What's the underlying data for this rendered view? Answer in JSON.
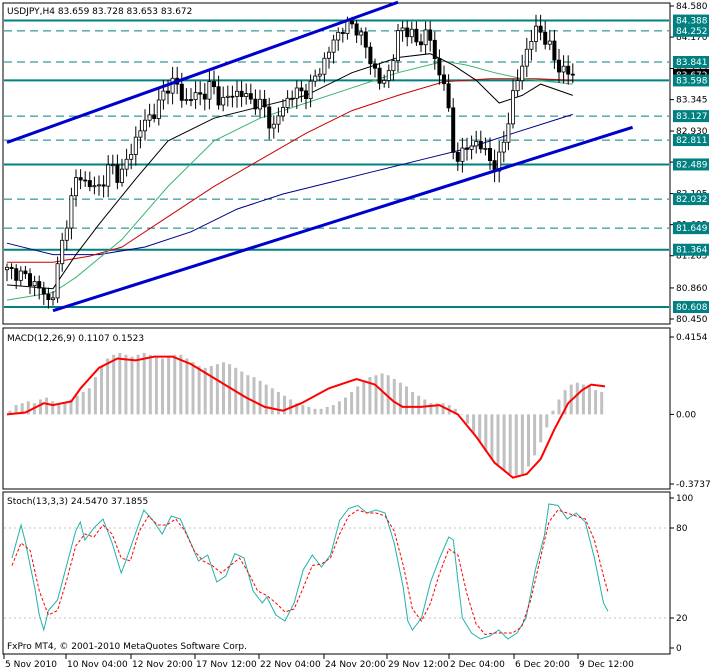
{
  "chart_data": [
    {
      "type": "candlestick",
      "panel": "price",
      "title": "USDJPY,H4  83.659 83.728 83.653 83.672",
      "y_ticks": [
        84.58,
        84.17,
        83.755,
        83.345,
        82.93,
        82.52,
        82.105,
        81.695,
        81.285,
        80.86,
        80.45
      ],
      "ylim": [
        80.45,
        84.58
      ],
      "price_labels": [
        {
          "value": 84.388,
          "color": "#008080"
        },
        {
          "value": 84.252,
          "color": "#008080"
        },
        {
          "value": 83.841,
          "color": "#008080"
        },
        {
          "value": 83.672,
          "color": "#000000"
        },
        {
          "value": 83.598,
          "color": "#008080"
        },
        {
          "value": 83.127,
          "color": "#008080"
        },
        {
          "value": 82.811,
          "color": "#008080"
        },
        {
          "value": 82.489,
          "color": "#008080"
        },
        {
          "value": 82.032,
          "color": "#008080"
        },
        {
          "value": 81.649,
          "color": "#008080"
        },
        {
          "value": 81.364,
          "color": "#008080"
        },
        {
          "value": 80.608,
          "color": "#008080"
        }
      ],
      "solid_levels": [
        84.388,
        83.598,
        82.489,
        81.364,
        80.608
      ],
      "dashed_levels": [
        84.252,
        83.841,
        83.127,
        82.811,
        82.032,
        81.649
      ],
      "close_path": [
        [
          0,
          81.1
        ],
        [
          3,
          81.05
        ],
        [
          6,
          80.95
        ],
        [
          9,
          80.75
        ],
        [
          10,
          80.62
        ],
        [
          12,
          81.3
        ],
        [
          14,
          81.9
        ],
        [
          16,
          82.4
        ],
        [
          18,
          82.2
        ],
        [
          21,
          82.2
        ],
        [
          23,
          82.5
        ],
        [
          25,
          82.3
        ],
        [
          27,
          82.6
        ],
        [
          29,
          82.9
        ],
        [
          31,
          83.1
        ],
        [
          33,
          83.2
        ],
        [
          35,
          83.5
        ],
        [
          37,
          83.6
        ],
        [
          39,
          83.3
        ],
        [
          41,
          83.4
        ],
        [
          43,
          83.4
        ],
        [
          45,
          83.55
        ],
        [
          47,
          83.3
        ],
        [
          49,
          83.4
        ],
        [
          51,
          83.45
        ],
        [
          53,
          83.35
        ],
        [
          55,
          83.3
        ],
        [
          57,
          83.2
        ],
        [
          58,
          82.9
        ],
        [
          60,
          83.2
        ],
        [
          62,
          83.4
        ],
        [
          64,
          83.45
        ],
        [
          66,
          83.45
        ],
        [
          68,
          83.7
        ],
        [
          70,
          83.9
        ],
        [
          72,
          84.2
        ],
        [
          74,
          84.3
        ],
        [
          76,
          84.35
        ],
        [
          78,
          84.1
        ],
        [
          80,
          83.8
        ],
        [
          82,
          83.5
        ],
        [
          84,
          83.8
        ],
        [
          86,
          84.3
        ],
        [
          88,
          84.25
        ],
        [
          90,
          84.05
        ],
        [
          92,
          84.3
        ],
        [
          94,
          83.7
        ],
        [
          96,
          83.6
        ],
        [
          97,
          82.7
        ],
        [
          98,
          82.6
        ],
        [
          100,
          82.65
        ],
        [
          102,
          82.8
        ],
        [
          104,
          82.7
        ],
        [
          106,
          82.5
        ],
        [
          107,
          82.45
        ],
        [
          109,
          82.9
        ],
        [
          110,
          83.3
        ],
        [
          112,
          83.7
        ],
        [
          114,
          84.1
        ],
        [
          116,
          84.3
        ],
        [
          118,
          84.1
        ],
        [
          120,
          83.8
        ],
        [
          121,
          83.75
        ],
        [
          123,
          83.672
        ]
      ],
      "ma_fast_path": [
        [
          0,
          80.9
        ],
        [
          10,
          80.85
        ],
        [
          15,
          81.3
        ],
        [
          20,
          81.7
        ],
        [
          28,
          82.3
        ],
        [
          35,
          82.8
        ],
        [
          45,
          83.1
        ],
        [
          55,
          83.25
        ],
        [
          65,
          83.4
        ],
        [
          75,
          83.7
        ],
        [
          85,
          83.9
        ],
        [
          92,
          83.95
        ],
        [
          97,
          83.8
        ],
        [
          102,
          83.6
        ],
        [
          107,
          83.3
        ],
        [
          112,
          83.4
        ],
        [
          116,
          83.55
        ],
        [
          123,
          83.4
        ]
      ],
      "ma_cyan_path": [
        [
          0,
          80.7
        ],
        [
          10,
          80.8
        ],
        [
          15,
          81.0
        ],
        [
          25,
          81.5
        ],
        [
          35,
          82.2
        ],
        [
          45,
          82.8
        ],
        [
          55,
          83.1
        ],
        [
          65,
          83.3
        ],
        [
          75,
          83.5
        ],
        [
          85,
          83.7
        ],
        [
          95,
          83.85
        ],
        [
          100,
          83.8
        ],
        [
          106,
          83.7
        ],
        [
          112,
          83.62
        ],
        [
          123,
          83.55
        ]
      ],
      "ma_red_path": [
        [
          0,
          81.2
        ],
        [
          10,
          81.2
        ],
        [
          18,
          81.28
        ],
        [
          25,
          81.4
        ],
        [
          35,
          81.8
        ],
        [
          45,
          82.2
        ],
        [
          55,
          82.55
        ],
        [
          65,
          82.9
        ],
        [
          75,
          83.2
        ],
        [
          85,
          83.4
        ],
        [
          95,
          83.58
        ],
        [
          105,
          83.62
        ],
        [
          115,
          83.62
        ],
        [
          123,
          83.6
        ]
      ],
      "ma_navy_path": [
        [
          0,
          81.45
        ],
        [
          10,
          81.3
        ],
        [
          20,
          81.3
        ],
        [
          30,
          81.4
        ],
        [
          40,
          81.6
        ],
        [
          50,
          81.9
        ],
        [
          60,
          82.1
        ],
        [
          70,
          82.25
        ],
        [
          80,
          82.4
        ],
        [
          90,
          82.55
        ],
        [
          100,
          82.7
        ],
        [
          110,
          82.9
        ],
        [
          123,
          83.15
        ]
      ],
      "trendlines": [
        {
          "from": [
            0,
            82.78
          ],
          "to": [
            85,
            84.63
          ]
        },
        {
          "from": [
            10,
            80.56
          ],
          "to": [
            136,
            82.98
          ]
        }
      ]
    },
    {
      "type": "histogram+line",
      "panel": "macd",
      "title": "MACD(12,26,9) 0.1107 0.1523",
      "y_ticks": [
        0.4154,
        0.0,
        -0.3737
      ],
      "ylim": [
        -0.3737,
        0.4154
      ],
      "histogram": [
        0.02,
        0.05,
        0.06,
        0.07,
        0.06,
        0.08,
        0.09,
        0.07,
        0.05,
        0.06,
        0.08,
        0.1,
        0.12,
        0.14,
        0.2,
        0.26,
        0.3,
        0.32,
        0.33,
        0.32,
        0.31,
        0.32,
        0.33,
        0.32,
        0.31,
        0.3,
        0.31,
        0.32,
        0.32,
        0.3,
        0.28,
        0.26,
        0.25,
        0.26,
        0.27,
        0.28,
        0.27,
        0.25,
        0.23,
        0.21,
        0.2,
        0.18,
        0.16,
        0.14,
        0.12,
        0.1,
        0.08,
        0.06,
        0.05,
        0.04,
        0.03,
        0.03,
        0.04,
        0.05,
        0.07,
        0.09,
        0.12,
        0.15,
        0.18,
        0.2,
        0.21,
        0.22,
        0.21,
        0.19,
        0.17,
        0.15,
        0.12,
        0.1,
        0.08,
        0.06,
        0.06,
        0.06,
        0.05,
        0.03,
        0.0,
        -0.05,
        -0.1,
        -0.15,
        -0.2,
        -0.24,
        -0.27,
        -0.3,
        -0.32,
        -0.33,
        -0.32,
        -0.28,
        -0.22,
        -0.15,
        -0.07,
        0.02,
        0.08,
        0.13,
        0.16,
        0.17,
        0.16,
        0.15,
        0.13,
        0.12
      ],
      "signal_path": [
        [
          0,
          0.0
        ],
        [
          4,
          0.01
        ],
        [
          8,
          0.06
        ],
        [
          10,
          0.05
        ],
        [
          14,
          0.07
        ],
        [
          16,
          0.14
        ],
        [
          20,
          0.25
        ],
        [
          24,
          0.3
        ],
        [
          28,
          0.29
        ],
        [
          32,
          0.31
        ],
        [
          36,
          0.31
        ],
        [
          40,
          0.27
        ],
        [
          46,
          0.18
        ],
        [
          52,
          0.09
        ],
        [
          56,
          0.04
        ],
        [
          60,
          0.02
        ],
        [
          64,
          0.06
        ],
        [
          70,
          0.14
        ],
        [
          76,
          0.19
        ],
        [
          80,
          0.16
        ],
        [
          84,
          0.07
        ],
        [
          86,
          0.04
        ],
        [
          90,
          0.04
        ],
        [
          94,
          0.05
        ],
        [
          98,
          0.0
        ],
        [
          102,
          -0.12
        ],
        [
          106,
          -0.26
        ],
        [
          110,
          -0.34
        ],
        [
          113,
          -0.32
        ],
        [
          116,
          -0.24
        ],
        [
          119,
          -0.08
        ],
        [
          122,
          0.06
        ],
        [
          125,
          0.13
        ],
        [
          127,
          0.16
        ],
        [
          130,
          0.15
        ]
      ]
    },
    {
      "type": "line",
      "panel": "stochastic",
      "title": "Stoch(13,3,3) 24.5470 37.1855",
      "y_ticks": [
        100,
        80,
        20,
        0
      ],
      "ylim": [
        0,
        100
      ],
      "main_path": [
        [
          0,
          60
        ],
        [
          2,
          82
        ],
        [
          3,
          70
        ],
        [
          5,
          40
        ],
        [
          6,
          22
        ],
        [
          7,
          12
        ],
        [
          8,
          25
        ],
        [
          10,
          32
        ],
        [
          12,
          55
        ],
        [
          14,
          78
        ],
        [
          15,
          84
        ],
        [
          16,
          72
        ],
        [
          18,
          80
        ],
        [
          20,
          86
        ],
        [
          22,
          70
        ],
        [
          24,
          50
        ],
        [
          25,
          58
        ],
        [
          27,
          75
        ],
        [
          29,
          92
        ],
        [
          31,
          85
        ],
        [
          33,
          76
        ],
        [
          35,
          88
        ],
        [
          37,
          86
        ],
        [
          39,
          72
        ],
        [
          41,
          58
        ],
        [
          43,
          62
        ],
        [
          45,
          44
        ],
        [
          47,
          48
        ],
        [
          49,
          63
        ],
        [
          51,
          60
        ],
        [
          53,
          38
        ],
        [
          55,
          30
        ],
        [
          56,
          34
        ],
        [
          58,
          22
        ],
        [
          60,
          18
        ],
        [
          62,
          30
        ],
        [
          64,
          52
        ],
        [
          66,
          62
        ],
        [
          68,
          54
        ],
        [
          70,
          62
        ],
        [
          72,
          85
        ],
        [
          74,
          93
        ],
        [
          76,
          95
        ],
        [
          78,
          90
        ],
        [
          80,
          92
        ],
        [
          82,
          90
        ],
        [
          84,
          70
        ],
        [
          86,
          40
        ],
        [
          87,
          18
        ],
        [
          88,
          12
        ],
        [
          90,
          20
        ],
        [
          92,
          44
        ],
        [
          94,
          60
        ],
        [
          96,
          74
        ],
        [
          97,
          72
        ],
        [
          98,
          45
        ],
        [
          99,
          20
        ],
        [
          101,
          10
        ],
        [
          103,
          6
        ],
        [
          105,
          8
        ],
        [
          107,
          12
        ],
        [
          109,
          6
        ],
        [
          111,
          10
        ],
        [
          113,
          20
        ],
        [
          115,
          52
        ],
        [
          117,
          75
        ],
        [
          118,
          96
        ],
        [
          120,
          95
        ],
        [
          122,
          86
        ],
        [
          124,
          90
        ],
        [
          126,
          84
        ],
        [
          128,
          60
        ],
        [
          130,
          30
        ],
        [
          131,
          24.547
        ]
      ],
      "signal_path": [
        [
          0,
          55
        ],
        [
          2,
          70
        ],
        [
          4,
          65
        ],
        [
          6,
          38
        ],
        [
          8,
          22
        ],
        [
          10,
          25
        ],
        [
          12,
          45
        ],
        [
          14,
          68
        ],
        [
          16,
          76
        ],
        [
          18,
          74
        ],
        [
          20,
          82
        ],
        [
          22,
          76
        ],
        [
          24,
          60
        ],
        [
          26,
          58
        ],
        [
          28,
          78
        ],
        [
          30,
          88
        ],
        [
          32,
          82
        ],
        [
          34,
          82
        ],
        [
          36,
          86
        ],
        [
          38,
          78
        ],
        [
          40,
          65
        ],
        [
          42,
          58
        ],
        [
          44,
          55
        ],
        [
          46,
          50
        ],
        [
          48,
          55
        ],
        [
          50,
          60
        ],
        [
          52,
          50
        ],
        [
          54,
          38
        ],
        [
          56,
          35
        ],
        [
          58,
          30
        ],
        [
          60,
          24
        ],
        [
          62,
          26
        ],
        [
          64,
          40
        ],
        [
          66,
          55
        ],
        [
          68,
          56
        ],
        [
          70,
          60
        ],
        [
          72,
          76
        ],
        [
          74,
          88
        ],
        [
          76,
          92
        ],
        [
          78,
          90
        ],
        [
          80,
          90
        ],
        [
          82,
          88
        ],
        [
          84,
          78
        ],
        [
          86,
          55
        ],
        [
          88,
          26
        ],
        [
          90,
          18
        ],
        [
          92,
          30
        ],
        [
          94,
          50
        ],
        [
          96,
          66
        ],
        [
          98,
          62
        ],
        [
          100,
          36
        ],
        [
          102,
          16
        ],
        [
          104,
          9
        ],
        [
          106,
          10
        ],
        [
          108,
          10
        ],
        [
          110,
          10
        ],
        [
          112,
          14
        ],
        [
          114,
          32
        ],
        [
          116,
          58
        ],
        [
          118,
          84
        ],
        [
          120,
          92
        ],
        [
          122,
          90
        ],
        [
          124,
          88
        ],
        [
          126,
          86
        ],
        [
          128,
          72
        ],
        [
          130,
          48
        ],
        [
          131,
          37.1855
        ]
      ]
    }
  ],
  "x_axis": {
    "tick_labels": [
      "5 Nov 2010",
      "10 Nov 04:00",
      "12 Nov 20:00",
      "17 Nov 12:00",
      "22 Nov 04:00",
      "24 Nov 20:00",
      "29 Nov 12:00",
      "2 Dec 04:00",
      "6 Dec 20:00",
      "9 Dec 12:00"
    ]
  },
  "copyright": "FxPro MT4, © 2001-2010 MetaQuotes Software Corp.",
  "colors": {
    "candle": "#000000",
    "level_line": "#008080",
    "trendline": "#0000cd",
    "ma_fast": "#000000",
    "ma_cyan": "#3cb371",
    "ma_red": "#cc0000",
    "ma_navy": "#00008b",
    "macd_hist": "#c0c0c0",
    "macd_signal": "#ff0000",
    "stoch_main": "#20b2aa",
    "stoch_signal": "#ff0000"
  }
}
